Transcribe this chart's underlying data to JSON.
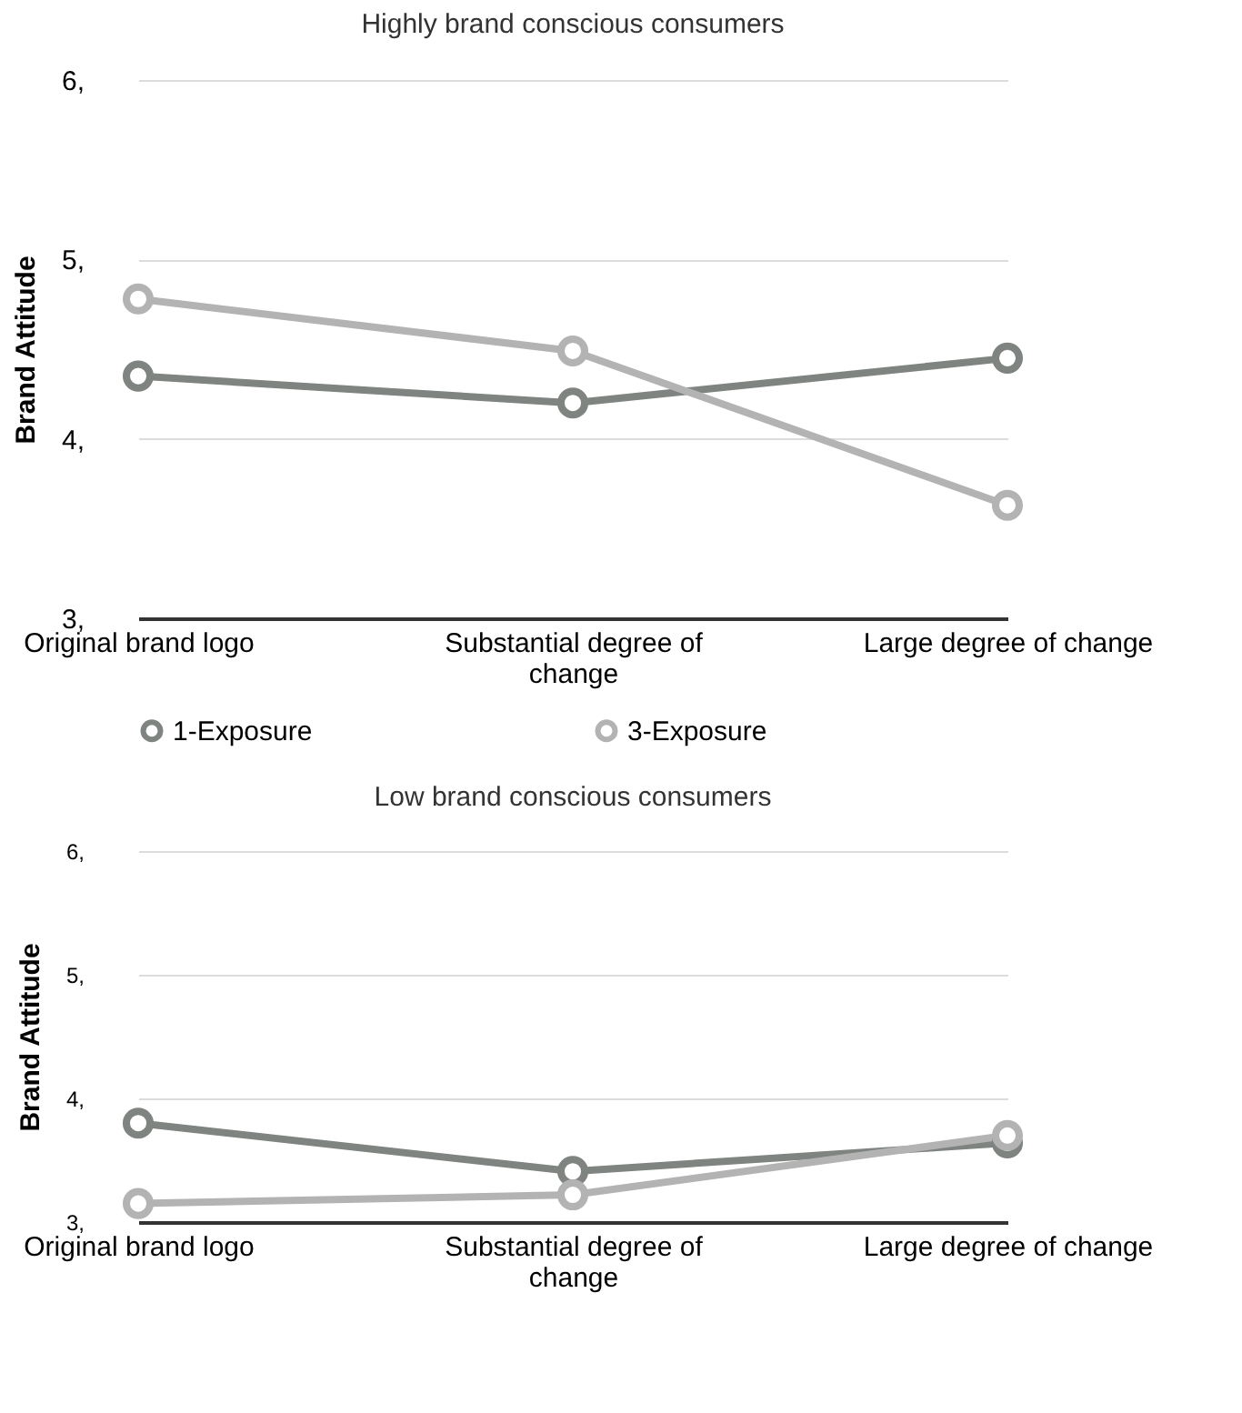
{
  "chart_data": [
    {
      "type": "line",
      "title": "Highly brand conscious consumers",
      "ylabel": "Brand Attitude",
      "categories": [
        "Original brand logo",
        "Substantial degree of change",
        "Large degree of change"
      ],
      "series": [
        {
          "name": "1-Exposure",
          "color": "#7f8480",
          "values": [
            4.35,
            4.2,
            4.45
          ]
        },
        {
          "name": "3-Exposure",
          "color": "#b3b3b3",
          "values": [
            4.78,
            4.49,
            3.63
          ]
        }
      ],
      "ylim": [
        3,
        6
      ],
      "yticks": [
        {
          "value": 3,
          "label": "3,"
        },
        {
          "value": 4,
          "label": "4,"
        },
        {
          "value": 5,
          "label": "5,"
        },
        {
          "value": 6,
          "label": "6,"
        }
      ],
      "grid": "y",
      "legend": "bottom",
      "marker": "circle",
      "line_style": "solid"
    },
    {
      "type": "line",
      "title": "Low brand conscious consumers",
      "ylabel": "Brand Attitude",
      "categories": [
        "Original brand logo",
        "Substantial degree of change",
        "Large degree of change"
      ],
      "series": [
        {
          "color": "#7f8480",
          "values": [
            3.8,
            3.41,
            3.64
          ]
        },
        {
          "color": "#b3b3b3",
          "values": [
            3.15,
            3.22,
            3.7
          ]
        }
      ],
      "ylim": [
        3,
        6
      ],
      "yticks": [
        {
          "value": 3,
          "label": "3,"
        },
        {
          "value": 4,
          "label": "4,"
        },
        {
          "value": 5,
          "label": "5,"
        },
        {
          "value": 6,
          "label": "6,"
        }
      ],
      "grid": "y",
      "legend": false,
      "marker": "circle",
      "line_style": "solid"
    }
  ]
}
